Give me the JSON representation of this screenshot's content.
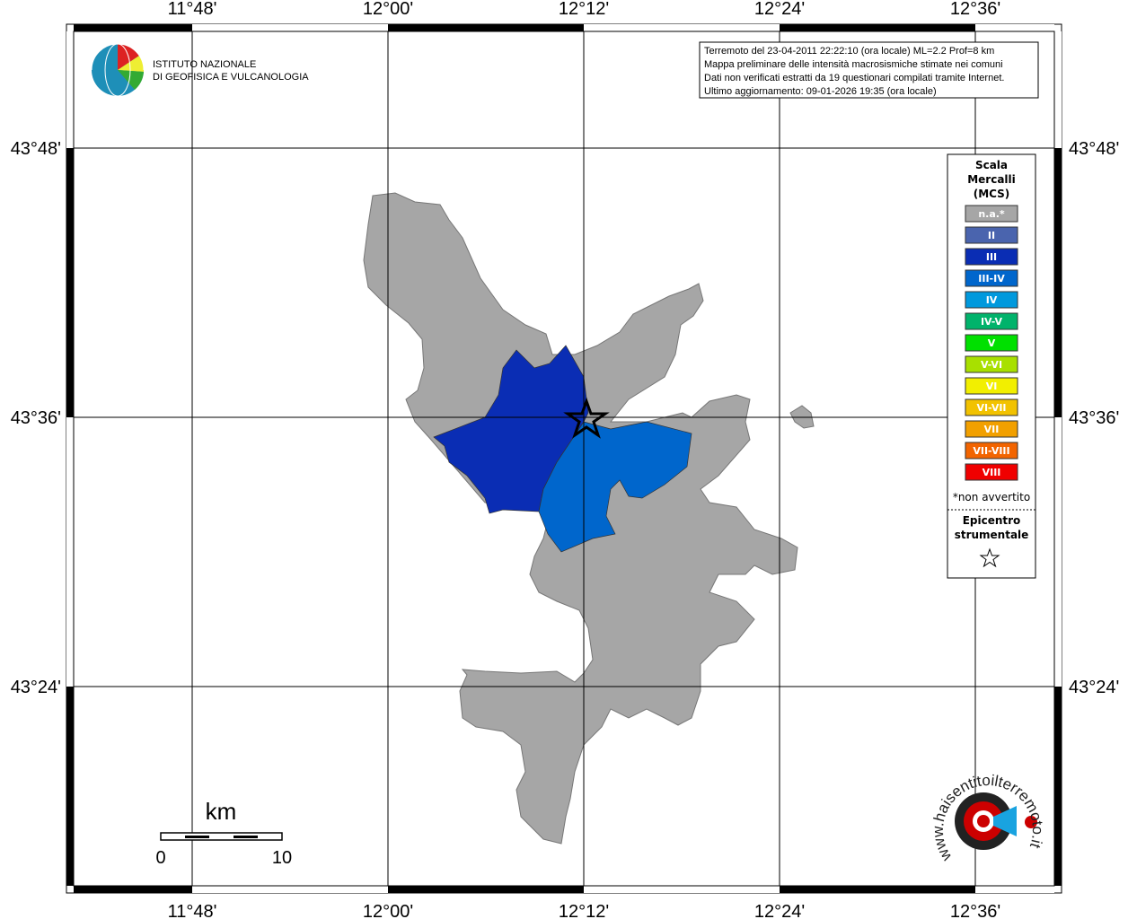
{
  "header": {
    "institute_line1": "ISTITUTO NAZIONALE",
    "institute_line2": "DI GEOFISICA E VULCANOLOGIA"
  },
  "info": {
    "lines": [
      "Terremoto del 23-04-2011 22:22:10 (ora locale) ML=2.2 Prof=8 km",
      "Mappa preliminare delle intensità macrosismiche stimate nei comuni",
      "Dati non verificati estratti da 19 questionari compilati tramite Internet.",
      "Ultimo aggiornamento: 09-01-2026 19:35 (ora locale)"
    ]
  },
  "map": {
    "longitude_labels": [
      "11°48'",
      "12°00'",
      "12°12'",
      "12°24'",
      "12°36'"
    ],
    "latitude_labels": [
      "43°48'",
      "43°36'",
      "43°24'"
    ]
  },
  "legend": {
    "title": [
      "Scala",
      "Mercalli",
      "(MCS)"
    ],
    "items": [
      {
        "label": "n.a.*",
        "color": "#a6a6a6"
      },
      {
        "label": "II",
        "color": "#4a64ae"
      },
      {
        "label": "III",
        "color": "#0a2db4"
      },
      {
        "label": "III-IV",
        "color": "#0066cc"
      },
      {
        "label": "IV",
        "color": "#0099dd"
      },
      {
        "label": "IV-V",
        "color": "#00b36b"
      },
      {
        "label": "V",
        "color": "#00e000"
      },
      {
        "label": "V-VI",
        "color": "#a8e000"
      },
      {
        "label": "VI",
        "color": "#f2ef00"
      },
      {
        "label": "VI-VII",
        "color": "#f2c200"
      },
      {
        "label": "VII",
        "color": "#f2a000"
      },
      {
        "label": "VII-VIII",
        "color": "#f26400"
      },
      {
        "label": "VIII",
        "color": "#f00000"
      }
    ],
    "note": "*non avvertito",
    "epicenter_title": [
      "Epicentro",
      "strumentale"
    ]
  },
  "scale_bar": {
    "unit": "km",
    "start": "0",
    "end": "10"
  },
  "logo": {
    "text": "www.haisentitoilterremoto.it"
  }
}
